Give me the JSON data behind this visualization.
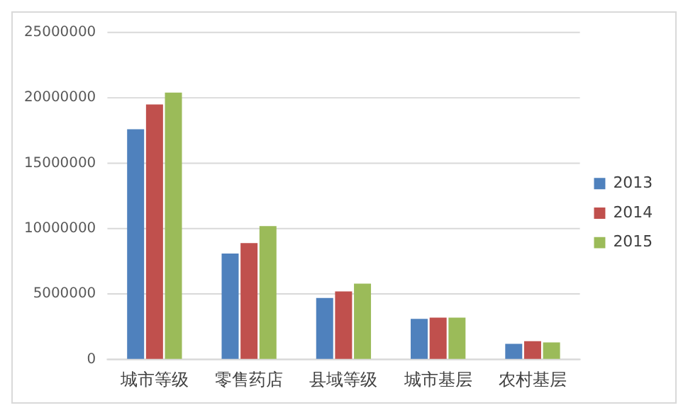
{
  "chart_data": {
    "type": "bar",
    "categories": [
      "城市等级",
      "零售药店",
      "县域等级",
      "城市基层",
      "农村基层"
    ],
    "series": [
      {
        "name": "2013",
        "color": "#4f81bd",
        "values": [
          17600000,
          8100000,
          4700000,
          3100000,
          1200000
        ]
      },
      {
        "name": "2014",
        "color": "#c0504d",
        "values": [
          19500000,
          8900000,
          5200000,
          3200000,
          1400000
        ]
      },
      {
        "name": "2015",
        "color": "#9bbb59",
        "values": [
          20400000,
          10200000,
          5800000,
          3200000,
          1300000
        ]
      }
    ],
    "ylim": [
      0,
      25000000
    ],
    "yticks": [
      0,
      5000000,
      10000000,
      15000000,
      20000000,
      25000000
    ],
    "grid": "y",
    "legend": "right"
  }
}
